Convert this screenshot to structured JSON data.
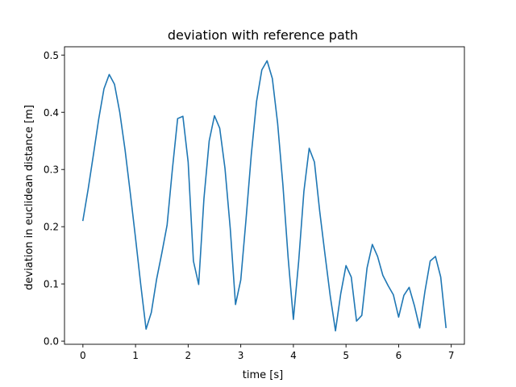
{
  "chart_data": {
    "type": "line",
    "title": "deviation with reference path",
    "xlabel": "time [s]",
    "ylabel": "deviation in euclidean distance [m]",
    "xlim": [
      -0.35,
      7.25
    ],
    "ylim": [
      -0.0055,
      0.5145
    ],
    "xticks": [
      0,
      1,
      2,
      3,
      4,
      5,
      6,
      7
    ],
    "yticks": [
      0.0,
      0.1,
      0.2,
      0.3,
      0.4,
      0.5
    ],
    "xtick_labels": [
      "0",
      "1",
      "2",
      "3",
      "4",
      "5",
      "6",
      "7"
    ],
    "ytick_labels": [
      "0.0",
      "0.1",
      "0.2",
      "0.3",
      "0.4",
      "0.5"
    ],
    "grid": false,
    "series": [
      {
        "color": "#1f77b4",
        "x": [
          0.0,
          0.1,
          0.2,
          0.3,
          0.4,
          0.5,
          0.6,
          0.7,
          0.8,
          0.9,
          1.0,
          1.1,
          1.2,
          1.3,
          1.4,
          1.5,
          1.6,
          1.7,
          1.8,
          1.9,
          2.0,
          2.1,
          2.2,
          2.3,
          2.4,
          2.5,
          2.6,
          2.7,
          2.8,
          2.9,
          3.0,
          3.1,
          3.2,
          3.3,
          3.4,
          3.5,
          3.6,
          3.7,
          3.8,
          3.9,
          4.0,
          4.1,
          4.2,
          4.3,
          4.4,
          4.5,
          4.6,
          4.7,
          4.8,
          4.9,
          5.0,
          5.1,
          5.2,
          5.3,
          5.4,
          5.5,
          5.6,
          5.7,
          5.8,
          5.9,
          6.0,
          6.1,
          6.2,
          6.3,
          6.4,
          6.5,
          6.6,
          6.7,
          6.8,
          6.9
        ],
        "y": [
          0.211,
          0.266,
          0.326,
          0.388,
          0.441,
          0.466,
          0.449,
          0.4,
          0.335,
          0.259,
          0.18,
          0.098,
          0.021,
          0.05,
          0.108,
          0.154,
          0.203,
          0.3,
          0.389,
          0.393,
          0.313,
          0.14,
          0.099,
          0.249,
          0.35,
          0.394,
          0.372,
          0.302,
          0.197,
          0.064,
          0.107,
          0.213,
          0.326,
          0.419,
          0.474,
          0.49,
          0.459,
          0.381,
          0.274,
          0.146,
          0.038,
          0.139,
          0.262,
          0.337,
          0.313,
          0.227,
          0.152,
          0.079,
          0.018,
          0.083,
          0.132,
          0.112,
          0.035,
          0.045,
          0.128,
          0.169,
          0.148,
          0.115,
          0.097,
          0.081,
          0.042,
          0.08,
          0.094,
          0.062,
          0.023,
          0.087,
          0.14,
          0.148,
          0.112,
          0.024
        ]
      }
    ]
  }
}
